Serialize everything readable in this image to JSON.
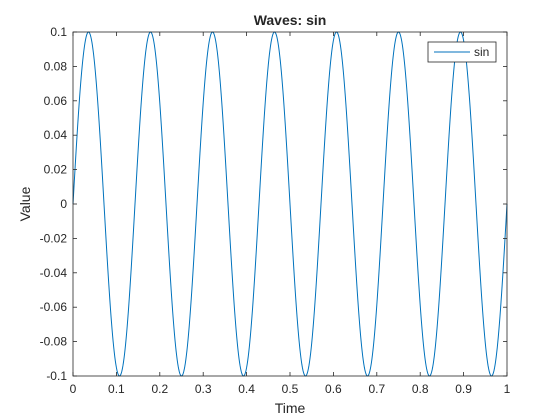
{
  "chart_data": {
    "type": "line",
    "title": "Waves: sin",
    "xlabel": "Time",
    "ylabel": "Value",
    "xlim": [
      0,
      1
    ],
    "ylim": [
      -0.1,
      0.1
    ],
    "x_ticks": [
      0,
      0.1,
      0.2,
      0.3,
      0.4,
      0.5,
      0.6,
      0.7,
      0.8,
      0.9,
      1
    ],
    "y_ticks": [
      -0.1,
      -0.08,
      -0.06,
      -0.04,
      -0.02,
      0,
      0.02,
      0.04,
      0.06,
      0.08,
      0.1
    ],
    "grid": false,
    "legend_position": "top-right",
    "series": [
      {
        "name": "sin",
        "color": "#0072BD",
        "function": "sin",
        "amplitude": 0.1,
        "frequency": 7
      }
    ]
  }
}
